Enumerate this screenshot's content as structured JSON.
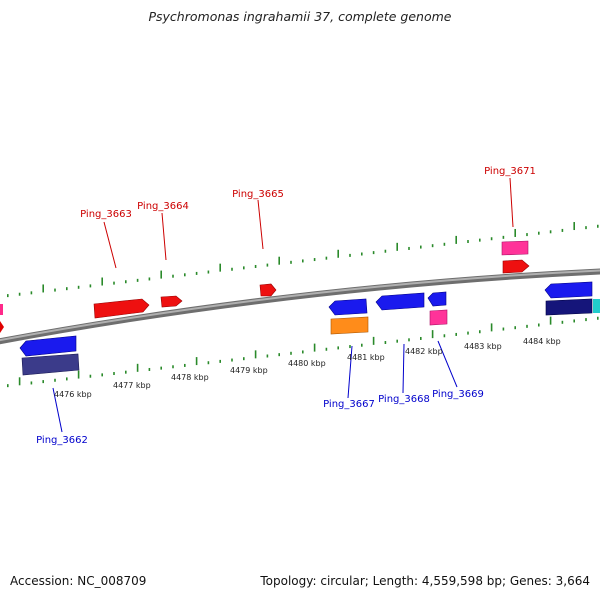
{
  "title": "Psychromonas ingrahamii 37, complete genome",
  "footer": {
    "accession": "Accession: NC_008709",
    "summary": "Topology: circular; Length: 4,559,598 bp; Genes: 3,664"
  },
  "colors": {
    "forward_label": "#cc0000",
    "reverse_label": "#0000cc",
    "backbone": "#8a8a8a",
    "tick": "#2a8a2a"
  },
  "scale_labels": [
    "4476 kbp",
    "4477 kbp",
    "4478 kbp",
    "4479 kbp",
    "4480 kbp",
    "4481 kbp",
    "4482 kbp",
    "4483 kbp",
    "4484 kbp"
  ],
  "forward_genes": [
    "Ping_3663",
    "Ping_3664",
    "Ping_3665",
    "Ping_3671"
  ],
  "reverse_genes": [
    "Ping_3662",
    "Ping_3667",
    "Ping_3668",
    "Ping_3669"
  ]
}
